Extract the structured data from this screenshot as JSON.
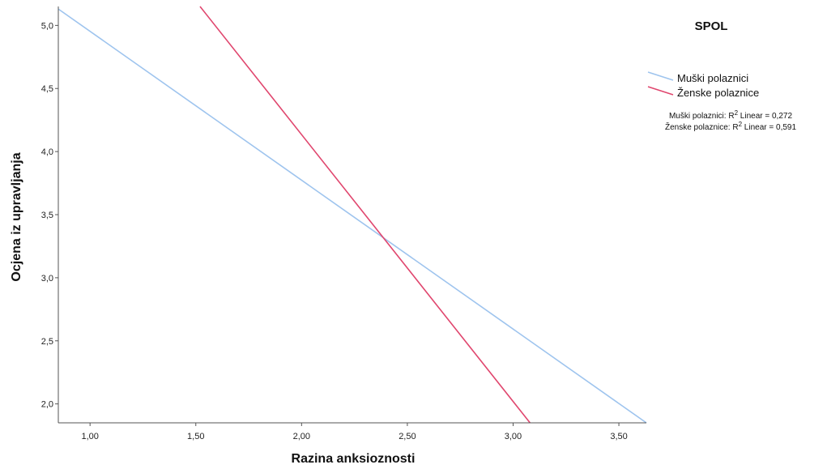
{
  "chart_data": {
    "type": "line",
    "xlabel": "Razina anksioznosti",
    "ylabel": "Ocjena iz upravljanja",
    "xlim": [
      0.85,
      3.63
    ],
    "ylim": [
      1.85,
      5.15
    ],
    "x_ticks": [
      "1,00",
      "1,50",
      "2,00",
      "2,50",
      "3,00",
      "3,50"
    ],
    "y_ticks": [
      "2,0",
      "2,5",
      "3,0",
      "3,5",
      "4,0",
      "4,5",
      "5,0"
    ],
    "grid": false,
    "legend": {
      "title": "SPOL",
      "position": "top-right",
      "entries": [
        "Muški polaznici",
        "Ženske polaznice"
      ]
    },
    "fit_notes": [
      {
        "prefix": "Muški polaznici: R",
        "sup": "2",
        "suffix": " Linear = 0,272"
      },
      {
        "prefix": "Ženske polaznice: R",
        "sup": "2",
        "suffix": " Linear = 0,591"
      }
    ],
    "series": [
      {
        "name": "Muški polaznici",
        "color": "#9ec4ee",
        "x": [
          0.85,
          3.63
        ],
        "y": [
          5.13,
          1.85
        ]
      },
      {
        "name": "Ženske polaznice",
        "color": "#e0466e",
        "x": [
          1.52,
          3.08
        ],
        "y": [
          5.15,
          1.85
        ]
      }
    ]
  }
}
